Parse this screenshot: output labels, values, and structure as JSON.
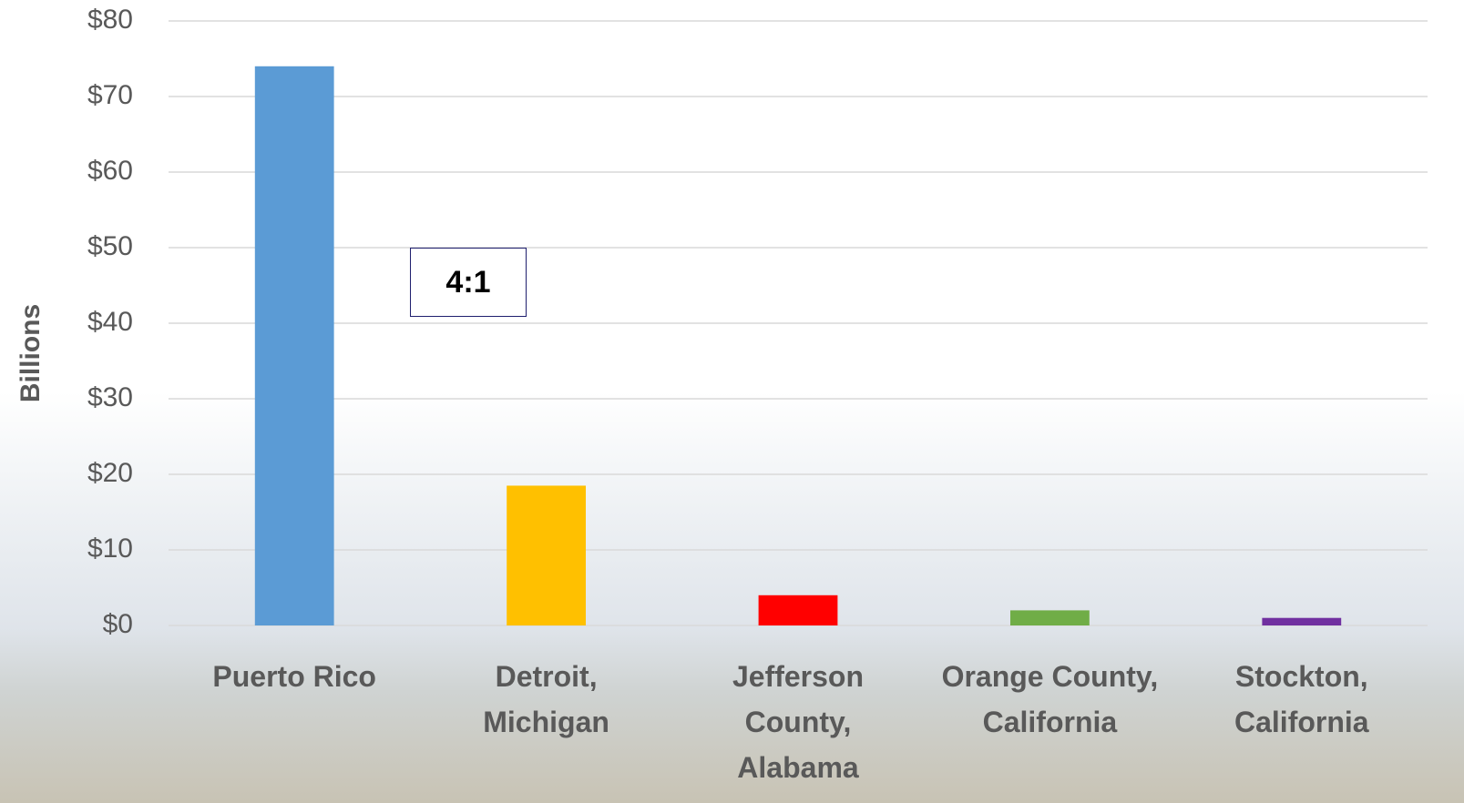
{
  "chart_data": {
    "type": "bar",
    "y_axis_label": "Billions",
    "annotation": "4:1",
    "categories": [
      "Puerto Rico",
      "Detroit, Michigan",
      "Jefferson County, Alabama",
      "Orange County, California",
      "Stockton, California"
    ],
    "values": [
      74,
      18.5,
      4,
      2,
      1
    ],
    "colors": [
      "#5b9bd5",
      "#ffc000",
      "#ff0000",
      "#70ad47",
      "#7030a0"
    ],
    "ylim": [
      0,
      80
    ],
    "yticks": [
      {
        "value": 0,
        "label": "$0"
      },
      {
        "value": 10,
        "label": "$10"
      },
      {
        "value": 20,
        "label": "$20"
      },
      {
        "value": 30,
        "label": "$30"
      },
      {
        "value": 40,
        "label": "$40"
      },
      {
        "value": 50,
        "label": "$50"
      },
      {
        "value": 60,
        "label": "$60"
      },
      {
        "value": 70,
        "label": "$70"
      },
      {
        "value": 80,
        "label": "$80"
      }
    ],
    "grid": true
  }
}
